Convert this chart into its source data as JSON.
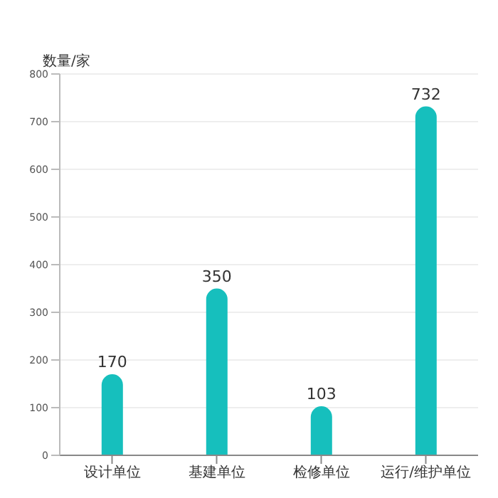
{
  "chart_data": {
    "type": "bar",
    "ylabel": "数量/家",
    "categories": [
      "设计单位",
      "基建单位",
      "检修单位",
      "运行/维护单位"
    ],
    "values": [
      170,
      350,
      103,
      732
    ],
    "color": "#16bfbd",
    "data_labels": true,
    "ylim": [
      0,
      800
    ],
    "yticks": [
      0,
      100,
      200,
      300,
      400,
      500,
      600,
      700,
      800
    ],
    "grid": "y"
  }
}
